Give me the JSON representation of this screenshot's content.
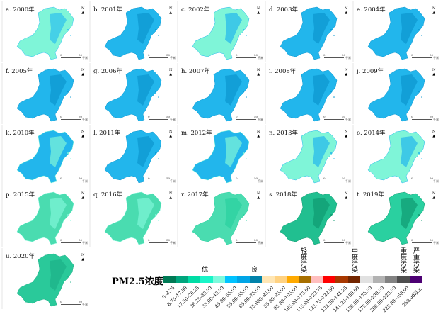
{
  "panels": [
    {
      "label": "a. 2000年",
      "base": "#7ff5d8",
      "spot": "#2cc0ee"
    },
    {
      "label": "b. 2001年",
      "base": "#22b6ec",
      "spot": "#0b96cf"
    },
    {
      "label": "c. 2002年",
      "base": "#7ff5d8",
      "spot": "#22b6ec"
    },
    {
      "label": "d. 2003年",
      "base": "#22b6ec",
      "spot": "#0b96cf"
    },
    {
      "label": "e. 2004年",
      "base": "#22b6ec",
      "spot": "#0b96cf"
    },
    {
      "label": "f. 2005年",
      "base": "#22b6ec",
      "spot": "#0b96cf"
    },
    {
      "label": "g. 2006年",
      "base": "#22b6ec",
      "spot": "#0b96cf"
    },
    {
      "label": "h. 2007年",
      "base": "#22b6ec",
      "spot": "#0b96cf"
    },
    {
      "label": "i. 2008年",
      "base": "#22b6ec",
      "spot": "#0b96cf"
    },
    {
      "label": "j. 2009年",
      "base": "#22b6ec",
      "spot": "#0b96cf"
    },
    {
      "label": "k. 2010年",
      "base": "#22b6ec",
      "spot": "#7ff5d8"
    },
    {
      "label": "l. 2011年",
      "base": "#22b6ec",
      "spot": "#0b96cf"
    },
    {
      "label": "m. 2012年",
      "base": "#22b6ec",
      "spot": "#7ff5d8"
    },
    {
      "label": "n. 2013年",
      "base": "#7ff5d8",
      "spot": "#22b6ec"
    },
    {
      "label": "o. 2014年",
      "base": "#7ff5d8",
      "spot": "#22b6ec"
    },
    {
      "label": "p. 2015年",
      "base": "#4adcb0",
      "spot": "#7ff5d8"
    },
    {
      "label": "q. 2016年",
      "base": "#4adcb0",
      "spot": "#7ff5d8"
    },
    {
      "label": "r. 2017年",
      "base": "#4adcb0",
      "spot": "#2ad0a0"
    },
    {
      "label": "s. 2018年",
      "base": "#21bf90",
      "spot": "#109a70"
    },
    {
      "label": "t. 2019年",
      "base": "#2ad0a0",
      "spot": "#109a70"
    },
    {
      "label": "u. 2020年",
      "base": "#2ac99a",
      "spot": "#1db088"
    }
  ],
  "north": "N",
  "scale": {
    "zero": "0",
    "fifty": "50",
    "unit": "千米"
  },
  "legend": {
    "title": "PM2.5浓度",
    "categories": [
      "优",
      "良",
      "轻度污染",
      "中度污染",
      "重度污染",
      "严重污染"
    ],
    "classes": [
      {
        "range": "0–8.75",
        "color": "#007a55"
      },
      {
        "range": "8.75–17.50",
        "color": "#00a57d"
      },
      {
        "range": "17.50–26.25",
        "color": "#00dca5"
      },
      {
        "range": "26.25–35.00",
        "color": "#19f5c8"
      },
      {
        "range": "35.00–45.00",
        "color": "#7dfadd"
      },
      {
        "range": "45.00–55.00",
        "color": "#00c3ff"
      },
      {
        "range": "55.00–65.00",
        "color": "#00a5e6"
      },
      {
        "range": "65.00–75.00",
        "color": "#0082aa"
      },
      {
        "range": "75.000–85.00",
        "color": "#ffe6b4"
      },
      {
        "range": "85.00–95.00",
        "color": "#ffd282"
      },
      {
        "range": "95.00–105.00",
        "color": "#ffaa00"
      },
      {
        "range": "105.00–115.00",
        "color": "#a87000"
      },
      {
        "range": "115.00–123.75",
        "color": "#ffbebe"
      },
      {
        "range": "123.75–132.50",
        "color": "#ff0000"
      },
      {
        "range": "132.50–141.25",
        "color": "#a83800"
      },
      {
        "range": "141.25–150.00",
        "color": "#732600"
      },
      {
        "range": "150.00–175.00",
        "color": "#e1e1e1"
      },
      {
        "range": "175.00–200.00",
        "color": "#b2b2b2"
      },
      {
        "range": "200.00–225.00",
        "color": "#828282"
      },
      {
        "range": "225.00–250.00",
        "color": "#4e4e4e"
      },
      {
        "range": "250.00以上",
        "color": "#4c0073"
      }
    ]
  }
}
